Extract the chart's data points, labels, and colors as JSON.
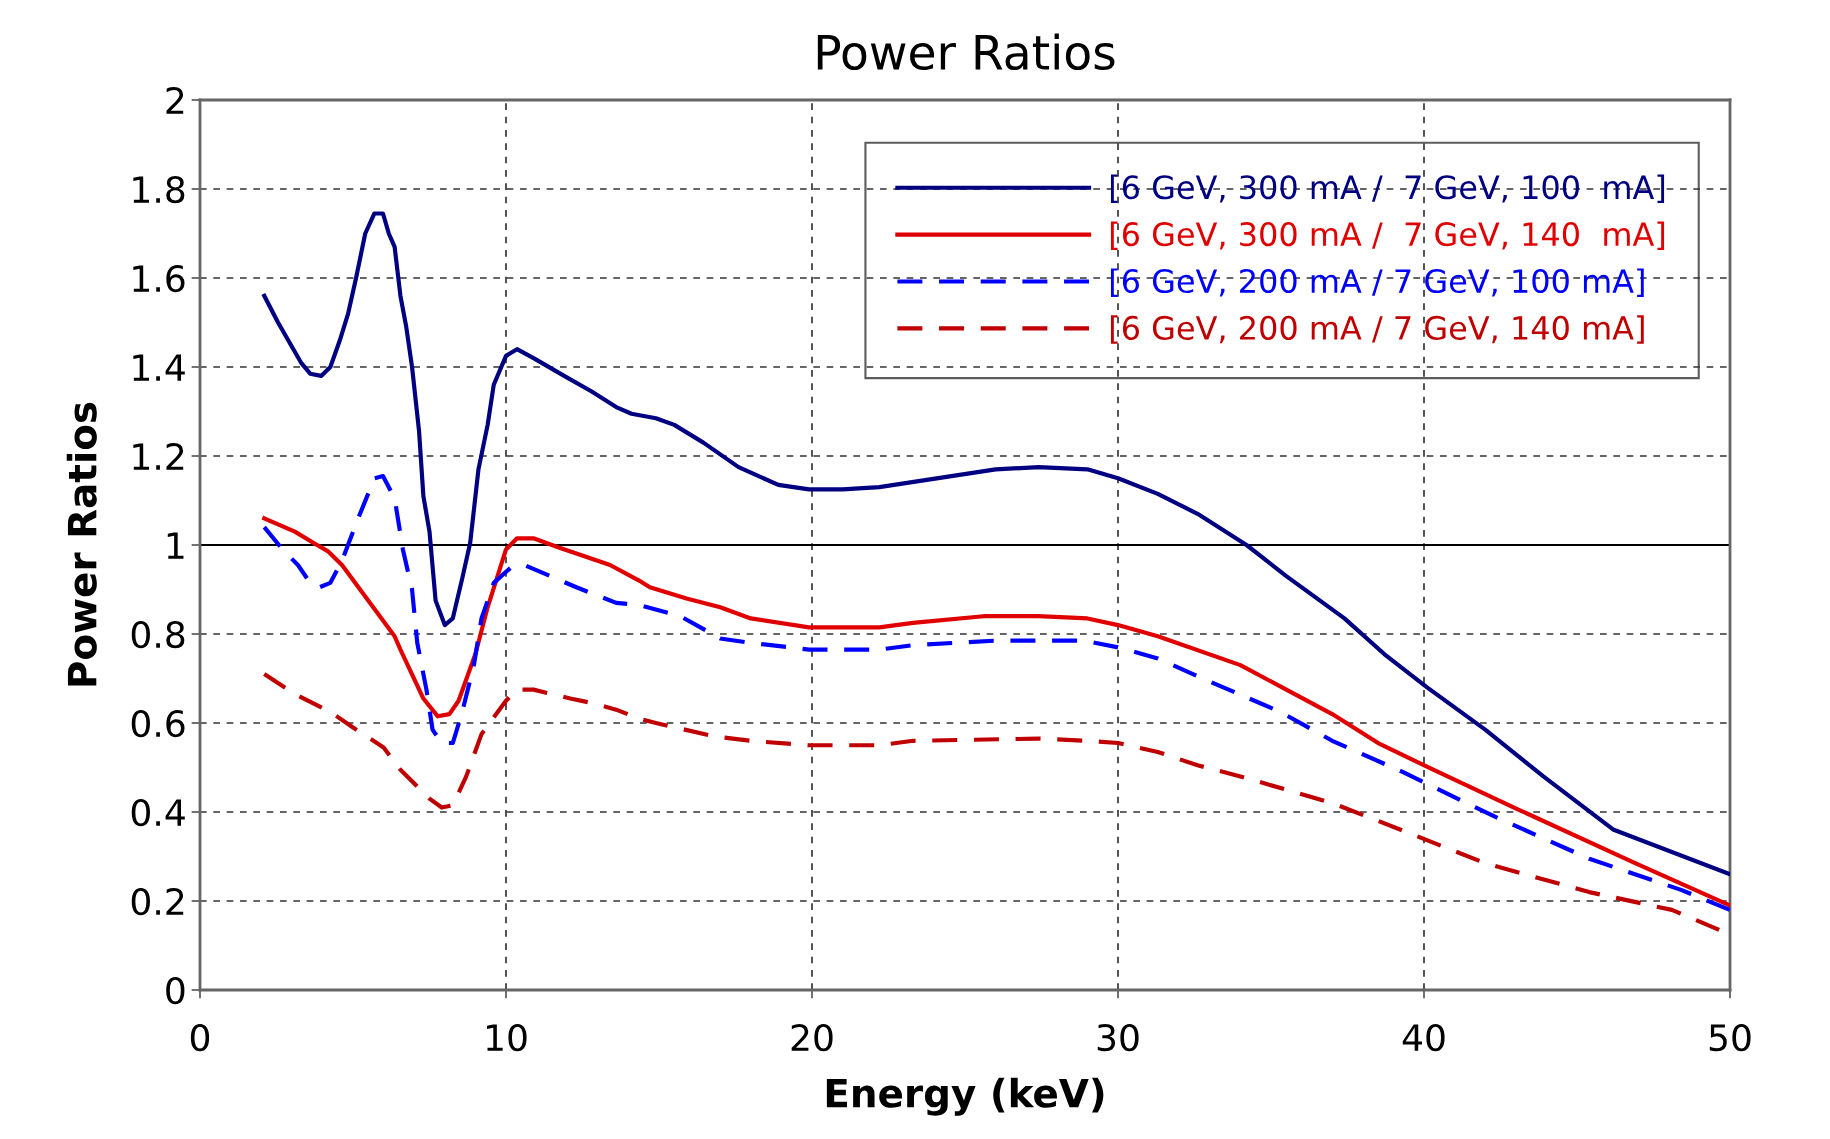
{
  "chart_data": {
    "type": "line",
    "title": "Power Ratios",
    "xlabel": "Energy (keV)",
    "ylabel": "Power Ratios",
    "xlim": [
      0,
      50
    ],
    "xticks": [
      0,
      10,
      20,
      30,
      40,
      50
    ],
    "ylim": [
      0,
      2
    ],
    "yticks": [
      0,
      0.2,
      0.4,
      0.6,
      0.8,
      1,
      1.2,
      1.4,
      1.6,
      1.8,
      2
    ],
    "grid": true,
    "legend": "top right",
    "marker": "none",
    "ref_lines": [
      {
        "axis": "y",
        "value": 1,
        "label": null,
        "color": "#000000",
        "line_style": "solid"
      }
    ],
    "series": [
      {
        "name": "[6 GeV, 300 mA /  7 GeV, 100  mA]",
        "color": "#000080",
        "line_style": "solid",
        "x": [
          2.1,
          2.55,
          3.3,
          3.6,
          3.96,
          4.26,
          4.57,
          4.84,
          5.1,
          5.4,
          5.7,
          5.98,
          6.17,
          6.36,
          6.55,
          6.74,
          6.93,
          7.16,
          7.3,
          7.5,
          7.7,
          8.0,
          8.26,
          8.57,
          8.83,
          9.1,
          9.4,
          9.6,
          10.0,
          10.36,
          10.9,
          11.9,
          12.8,
          13.6,
          14.1,
          14.9,
          15.5,
          16.45,
          17.6,
          18.9,
          19.9,
          21,
          22.2,
          26,
          27.4,
          29,
          30,
          31.3,
          32.6,
          34.2,
          35.5,
          37.4,
          38.7,
          40.1,
          42,
          43.9,
          46.2,
          50
        ],
        "values": [
          1.56,
          1.5,
          1.41,
          1.385,
          1.38,
          1.4,
          1.46,
          1.52,
          1.6,
          1.7,
          1.745,
          1.745,
          1.7,
          1.67,
          1.56,
          1.49,
          1.4,
          1.255,
          1.11,
          1.03,
          0.875,
          0.82,
          0.835,
          0.925,
          1.005,
          1.17,
          1.27,
          1.36,
          1.425,
          1.44,
          1.42,
          1.38,
          1.345,
          1.31,
          1.295,
          1.285,
          1.27,
          1.23,
          1.175,
          1.135,
          1.125,
          1.125,
          1.13,
          1.17,
          1.175,
          1.17,
          1.15,
          1.115,
          1.07,
          1.0,
          0.93,
          0.835,
          0.755,
          0.68,
          0.585,
          0.48,
          0.36,
          0.26
        ]
      },
      {
        "name": "[6 GeV, 300 mA /  7 GeV, 140  mA]",
        "color": "#e00000",
        "line_style": "solid",
        "x": [
          2.1,
          3.1,
          3.7,
          4.2,
          4.64,
          6.36,
          6.55,
          7.3,
          7.77,
          8.15,
          8.45,
          9.0,
          9.4,
          10,
          10.36,
          10.9,
          11.7,
          13.4,
          14.35,
          14.7,
          15.9,
          17,
          18,
          19.9,
          22.2,
          23.3,
          25.6,
          27.4,
          29,
          30,
          31.3,
          34,
          35.5,
          37,
          38.5,
          40.3,
          43.1,
          46.9,
          50
        ],
        "values": [
          1.06,
          1.03,
          1.005,
          0.985,
          0.955,
          0.795,
          0.765,
          0.655,
          0.615,
          0.62,
          0.65,
          0.755,
          0.86,
          0.99,
          1.015,
          1.015,
          0.995,
          0.955,
          0.92,
          0.905,
          0.88,
          0.86,
          0.835,
          0.815,
          0.815,
          0.825,
          0.84,
          0.84,
          0.835,
          0.82,
          0.795,
          0.73,
          0.675,
          0.62,
          0.555,
          0.495,
          0.405,
          0.285,
          0.19
        ]
      },
      {
        "name": "[6 GeV, 200 mA / 7 GeV, 100 mA]",
        "color": "#0000ff",
        "line_style": "dashed",
        "x": [
          2.1,
          2.7,
          3.2,
          3.6,
          3.9,
          4.26,
          4.64,
          5.2,
          5.7,
          5.98,
          6.36,
          6.63,
          6.93,
          7.1,
          7.4,
          7.6,
          7.9,
          8.26,
          8.57,
          8.95,
          9.2,
          9.6,
          10.17,
          10.6,
          12.3,
          13.6,
          14.35,
          15.7,
          17,
          18,
          19.9,
          22.2,
          23.3,
          26,
          28.9,
          30,
          31.3,
          32.6,
          35.3,
          37,
          39.3,
          42.3,
          45.4,
          48.4,
          50
        ],
        "values": [
          1.04,
          0.99,
          0.955,
          0.915,
          0.905,
          0.915,
          0.965,
          1.065,
          1.15,
          1.155,
          1.105,
          0.99,
          0.9,
          0.78,
          0.675,
          0.585,
          0.555,
          0.555,
          0.625,
          0.73,
          0.835,
          0.915,
          0.95,
          0.955,
          0.905,
          0.87,
          0.865,
          0.84,
          0.79,
          0.78,
          0.765,
          0.765,
          0.775,
          0.785,
          0.785,
          0.77,
          0.745,
          0.705,
          0.625,
          0.56,
          0.49,
          0.39,
          0.295,
          0.225,
          0.18
        ]
      },
      {
        "name": "[6 GeV, 200 mA / 7 GeV, 140 mA]",
        "color": "#c00000",
        "line_style": "dashed",
        "x": [
          2.1,
          3.1,
          4.26,
          5.0,
          6.0,
          6.55,
          7.5,
          7.9,
          8.26,
          8.7,
          9.2,
          10,
          10.36,
          10.9,
          12.1,
          12.8,
          13.6,
          14.35,
          14.9,
          16.8,
          18,
          19.9,
          22.2,
          23.3,
          27.4,
          29,
          30,
          31.3,
          32.6,
          34,
          37,
          38.5,
          42,
          45.4,
          48.1,
          50
        ],
        "values": [
          0.71,
          0.665,
          0.625,
          0.59,
          0.545,
          0.495,
          0.43,
          0.41,
          0.415,
          0.48,
          0.575,
          0.65,
          0.675,
          0.675,
          0.655,
          0.645,
          0.63,
          0.61,
          0.6,
          0.57,
          0.56,
          0.55,
          0.55,
          0.56,
          0.565,
          0.56,
          0.555,
          0.535,
          0.505,
          0.48,
          0.42,
          0.38,
          0.285,
          0.22,
          0.18,
          0.125
        ]
      }
    ]
  }
}
